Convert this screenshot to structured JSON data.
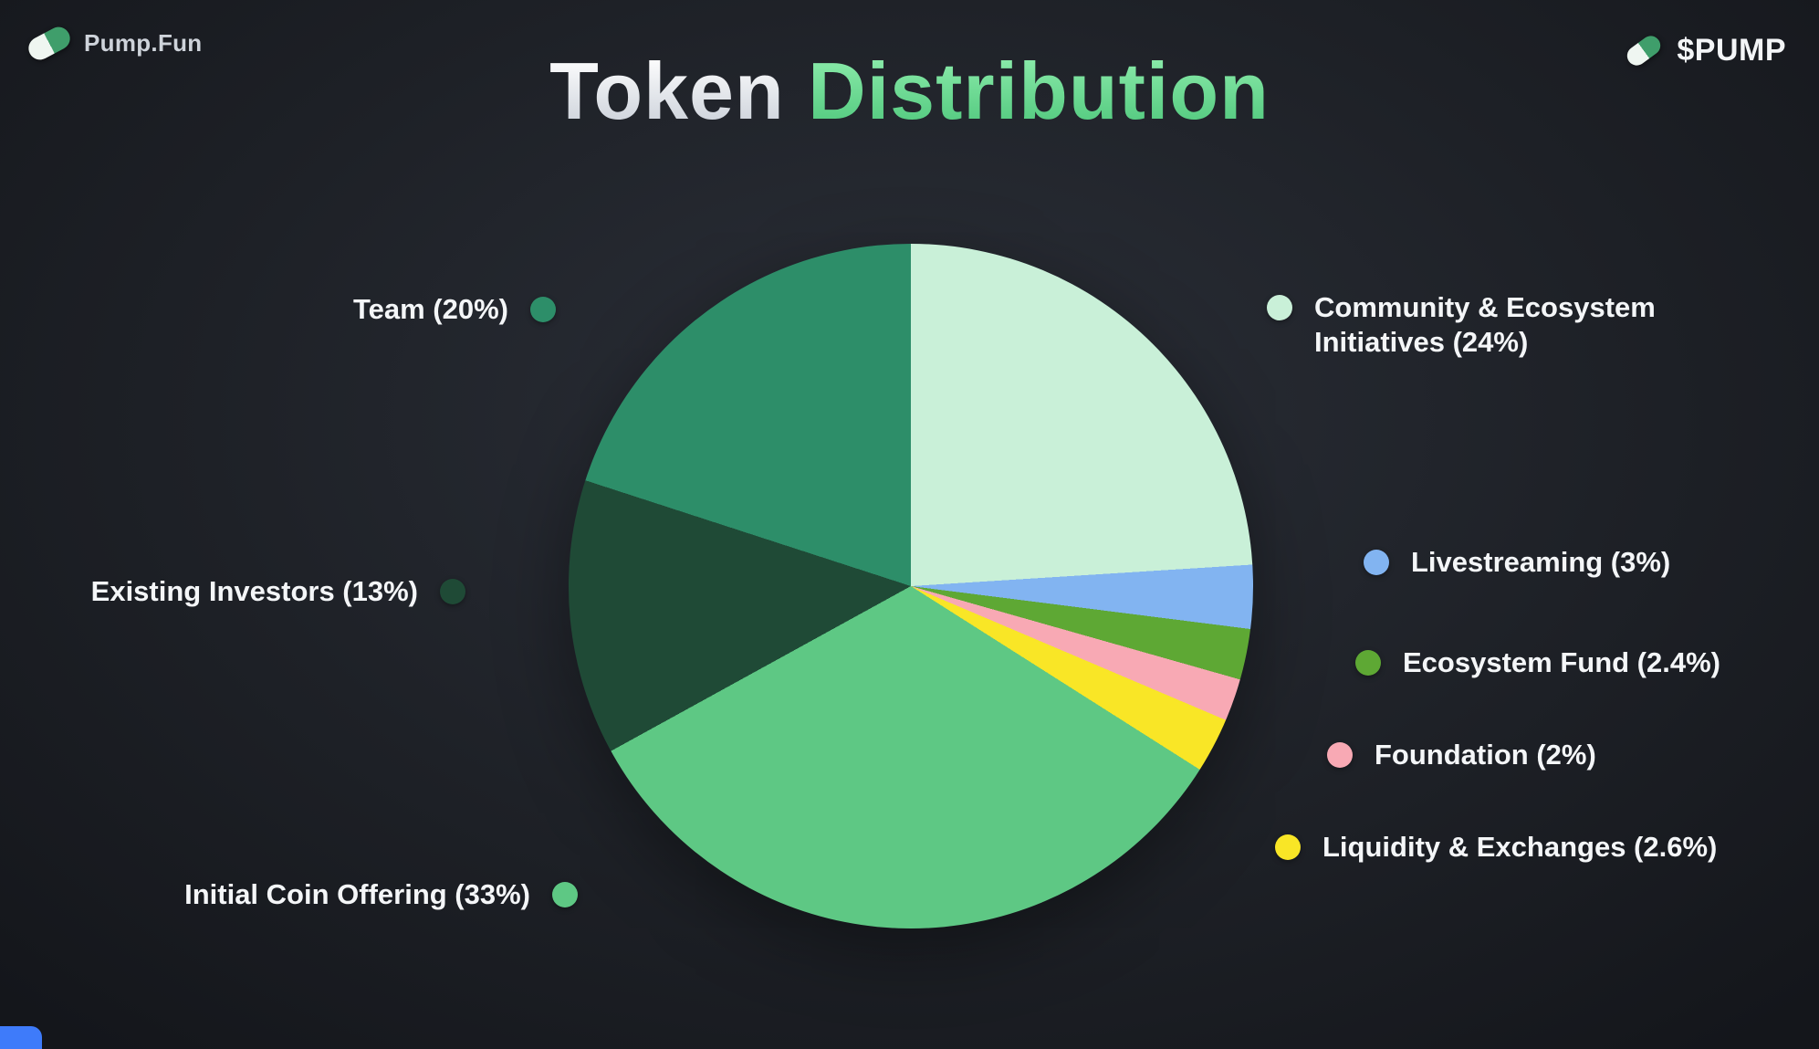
{
  "header": {
    "brand": "Pump.Fun",
    "ticker": "$PUMP"
  },
  "title": {
    "word1": "Token",
    "word2": "Distribution"
  },
  "colors": {
    "title_green": "#6fdd92",
    "background": "#1d2026",
    "corner_accent": "#3e7bfa"
  },
  "chart_data": {
    "type": "pie",
    "title": "Token Distribution",
    "start_angle_deg": 0,
    "direction": "clockwise",
    "legend_position": "around",
    "segments": [
      {
        "label": "Community & Ecosystem Initiatives",
        "value": 24,
        "color": "#c9f0d8",
        "display": "Community & Ecosystem Initiatives (24%)"
      },
      {
        "label": "Livestreaming",
        "value": 3,
        "color": "#82b4f1",
        "display": "Livestreaming (3%)"
      },
      {
        "label": "Ecosystem Fund",
        "value": 2.4,
        "color": "#5ea834",
        "display": "Ecosystem Fund (2.4%)"
      },
      {
        "label": "Foundation",
        "value": 2,
        "color": "#f8a9b4",
        "display": "Foundation (2%)"
      },
      {
        "label": "Liquidity & Exchanges",
        "value": 2.6,
        "color": "#f9e626",
        "display": "Liquidity & Exchanges (2.6%)"
      },
      {
        "label": "Initial Coin Offering",
        "value": 33,
        "color": "#5ec884",
        "display": "Initial Coin Offering (33%)"
      },
      {
        "label": "Existing Investors",
        "value": 13,
        "color": "#1f4a36",
        "display": "Existing Investors (13%)"
      },
      {
        "label": "Team",
        "value": 20,
        "color": "#2d8e69",
        "display": "Team (20%)"
      }
    ]
  }
}
